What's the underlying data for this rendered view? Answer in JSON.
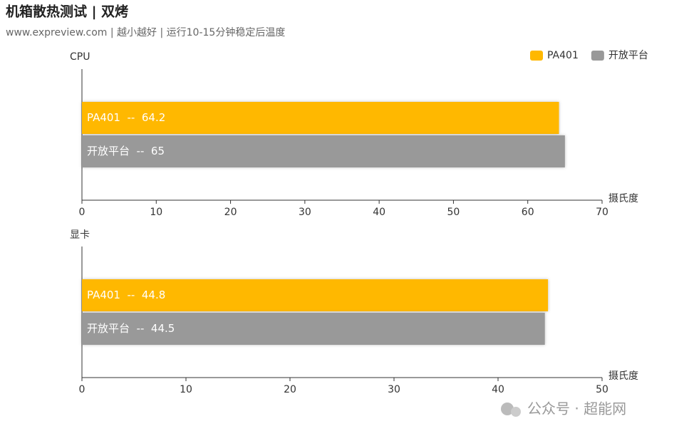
{
  "header": {
    "title": "机箱散热测试 | 双烤",
    "subtitle": "www.expreview.com | 越小越好 | 运行10-15分钟稳定后温度"
  },
  "watermark": "公众号 · 超能网",
  "chart_data": [
    {
      "type": "bar",
      "orientation": "horizontal",
      "title": "CPU",
      "x_label": "摄氏度",
      "categories": [
        null
      ],
      "legend": "top-right",
      "series": [
        {
          "name": "PA401",
          "color": "#ffb800",
          "values": [
            64.2
          ],
          "value_labels": [
            "PA401  --  64.2"
          ]
        },
        {
          "name": "开放平台",
          "color": "#999999",
          "values": [
            65
          ],
          "value_labels": [
            "开放平台  --  65"
          ]
        }
      ],
      "xlim": [
        0,
        70
      ],
      "xticks": [
        0,
        10,
        20,
        30,
        40,
        50,
        60,
        70
      ]
    },
    {
      "type": "bar",
      "orientation": "horizontal",
      "title": "显卡",
      "x_label": "摄氏度",
      "categories": [
        null
      ],
      "series": [
        {
          "name": "PA401",
          "color": "#ffb800",
          "values": [
            44.8
          ],
          "value_labels": [
            "PA401  --  44.8"
          ]
        },
        {
          "name": "开放平台",
          "color": "#999999",
          "values": [
            44.5
          ],
          "value_labels": [
            "开放平台  --  44.5"
          ]
        }
      ],
      "xlim": [
        0,
        50
      ],
      "xticks": [
        0,
        10,
        20,
        30,
        40,
        50
      ]
    }
  ]
}
